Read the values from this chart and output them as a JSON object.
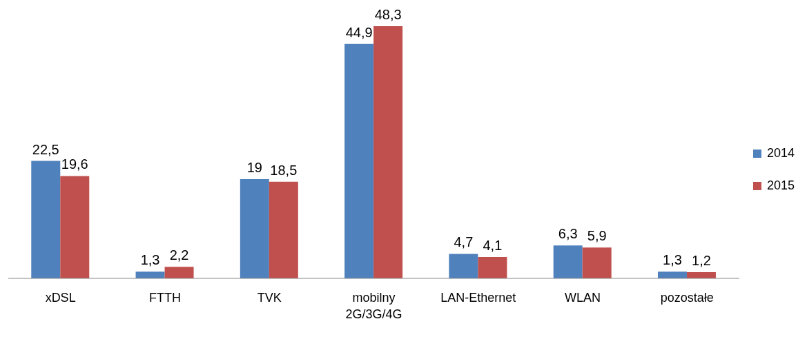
{
  "chart_data": {
    "type": "bar",
    "categories": [
      "xDSL",
      "FTTH",
      "TVK",
      "mobilny 2G/3G/4G",
      "LAN-Ethernet",
      "WLAN",
      "pozostałe"
    ],
    "series": [
      {
        "name": "2014",
        "color": "#4f81bd",
        "values": [
          22.5,
          1.3,
          19,
          44.9,
          4.7,
          6.3,
          1.3
        ],
        "value_labels": [
          "22,5",
          "1,3",
          "19",
          "44,9",
          "4,7",
          "6,3",
          "1,3"
        ]
      },
      {
        "name": "2015",
        "color": "#c0504d",
        "values": [
          19.6,
          2.2,
          18.5,
          48.3,
          4.1,
          5.9,
          1.2
        ],
        "value_labels": [
          "19,6",
          "2,2",
          "18,5",
          "48,3",
          "4,1",
          "5,9",
          "1,2"
        ]
      }
    ],
    "legend": "right",
    "tick_labels": "x"
  }
}
